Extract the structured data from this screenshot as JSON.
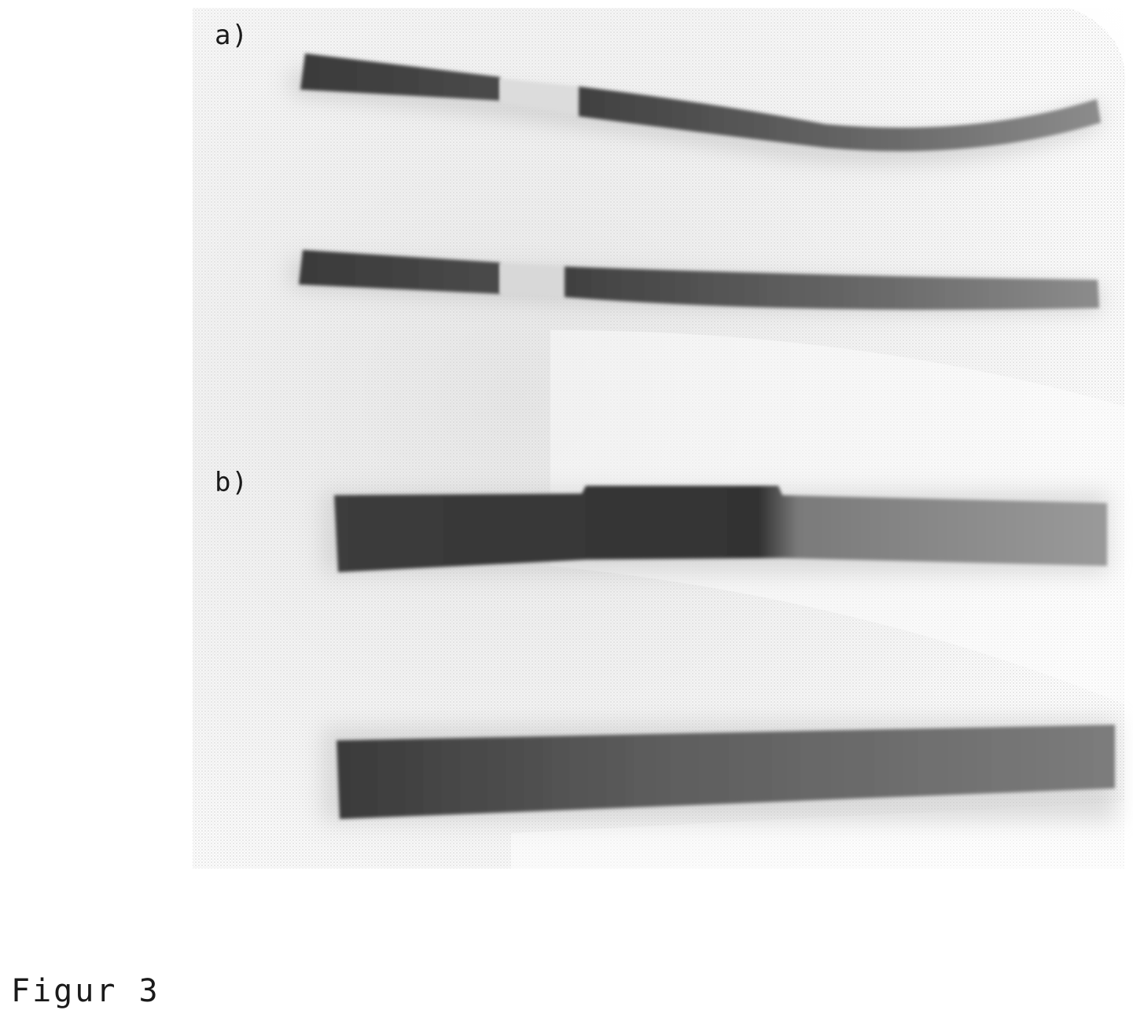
{
  "panels": {
    "a": {
      "label": "a)"
    },
    "b": {
      "label": "b)"
    }
  },
  "caption": "Figur 3"
}
